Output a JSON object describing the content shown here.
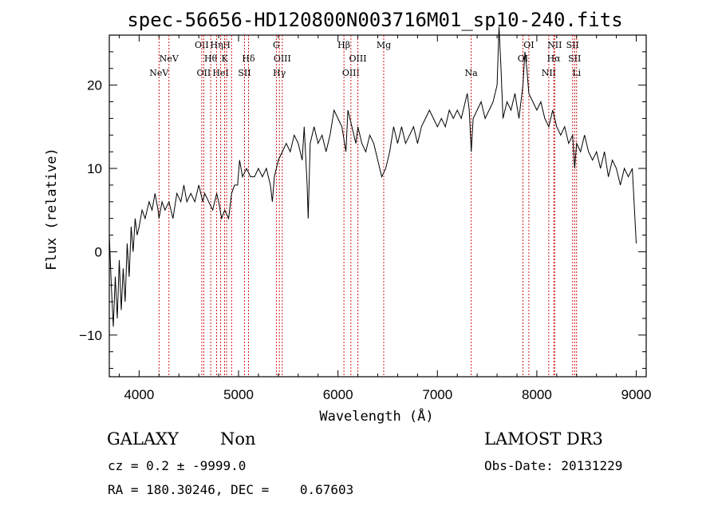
{
  "chart_data": {
    "type": "line",
    "title": "spec-56656-HD120800N003716M01_sp10-240.fits",
    "xlabel": "Wavelength (Å)",
    "ylabel": "Flux (relative)",
    "xlim": [
      3700,
      9100
    ],
    "ylim": [
      -15,
      26
    ],
    "x_ticks": [
      4000,
      5000,
      6000,
      7000,
      8000,
      9000
    ],
    "y_ticks": [
      -10,
      0,
      10,
      20
    ],
    "grid": false,
    "series": [
      {
        "color": "#000000",
        "points": [
          [
            3700,
            2
          ],
          [
            3720,
            -4
          ],
          [
            3740,
            -9
          ],
          [
            3760,
            -3
          ],
          [
            3780,
            -8
          ],
          [
            3800,
            -1
          ],
          [
            3820,
            -7
          ],
          [
            3840,
            -2
          ],
          [
            3860,
            -6
          ],
          [
            3880,
            1
          ],
          [
            3900,
            -3
          ],
          [
            3920,
            3
          ],
          [
            3940,
            0
          ],
          [
            3960,
            4
          ],
          [
            3980,
            2
          ],
          [
            4000,
            3
          ],
          [
            4030,
            5
          ],
          [
            4060,
            4
          ],
          [
            4100,
            6
          ],
          [
            4130,
            5
          ],
          [
            4160,
            7
          ],
          [
            4190,
            5
          ],
          [
            4200,
            4
          ],
          [
            4230,
            6
          ],
          [
            4260,
            5
          ],
          [
            4300,
            6
          ],
          [
            4340,
            4
          ],
          [
            4380,
            7
          ],
          [
            4420,
            6
          ],
          [
            4450,
            8
          ],
          [
            4480,
            6
          ],
          [
            4520,
            7
          ],
          [
            4560,
            6
          ],
          [
            4600,
            8
          ],
          [
            4640,
            6
          ],
          [
            4660,
            7
          ],
          [
            4700,
            6
          ],
          [
            4740,
            5
          ],
          [
            4780,
            7
          ],
          [
            4800,
            6
          ],
          [
            4830,
            4
          ],
          [
            4860,
            5
          ],
          [
            4900,
            4
          ],
          [
            4930,
            7
          ],
          [
            4960,
            8
          ],
          [
            4990,
            8
          ],
          [
            5010,
            11
          ],
          [
            5040,
            9
          ],
          [
            5080,
            10
          ],
          [
            5120,
            9
          ],
          [
            5160,
            9
          ],
          [
            5200,
            10
          ],
          [
            5240,
            9
          ],
          [
            5280,
            10
          ],
          [
            5320,
            8
          ],
          [
            5340,
            6
          ],
          [
            5360,
            9
          ],
          [
            5400,
            11
          ],
          [
            5440,
            12
          ],
          [
            5480,
            13
          ],
          [
            5520,
            12
          ],
          [
            5560,
            14
          ],
          [
            5600,
            13
          ],
          [
            5640,
            11
          ],
          [
            5660,
            15
          ],
          [
            5690,
            8
          ],
          [
            5700,
            4
          ],
          [
            5720,
            13
          ],
          [
            5760,
            15
          ],
          [
            5800,
            13
          ],
          [
            5840,
            14
          ],
          [
            5880,
            12
          ],
          [
            5920,
            14
          ],
          [
            5960,
            17
          ],
          [
            6000,
            16
          ],
          [
            6040,
            15
          ],
          [
            6080,
            12
          ],
          [
            6100,
            17
          ],
          [
            6140,
            15
          ],
          [
            6180,
            13
          ],
          [
            6200,
            15
          ],
          [
            6240,
            13
          ],
          [
            6280,
            12
          ],
          [
            6320,
            14
          ],
          [
            6360,
            13
          ],
          [
            6400,
            11
          ],
          [
            6440,
            9
          ],
          [
            6480,
            10
          ],
          [
            6520,
            12
          ],
          [
            6560,
            15
          ],
          [
            6600,
            13
          ],
          [
            6640,
            15
          ],
          [
            6680,
            13
          ],
          [
            6720,
            14
          ],
          [
            6760,
            15
          ],
          [
            6800,
            13
          ],
          [
            6840,
            15
          ],
          [
            6880,
            16
          ],
          [
            6920,
            17
          ],
          [
            6960,
            16
          ],
          [
            7000,
            15
          ],
          [
            7040,
            16
          ],
          [
            7080,
            15
          ],
          [
            7120,
            17
          ],
          [
            7160,
            16
          ],
          [
            7200,
            17
          ],
          [
            7240,
            16
          ],
          [
            7280,
            18
          ],
          [
            7300,
            19
          ],
          [
            7320,
            17
          ],
          [
            7340,
            12
          ],
          [
            7360,
            16
          ],
          [
            7400,
            17
          ],
          [
            7440,
            18
          ],
          [
            7480,
            16
          ],
          [
            7520,
            17
          ],
          [
            7560,
            18
          ],
          [
            7600,
            20
          ],
          [
            7620,
            27
          ],
          [
            7640,
            22
          ],
          [
            7660,
            16
          ],
          [
            7700,
            18
          ],
          [
            7740,
            17
          ],
          [
            7780,
            19
          ],
          [
            7820,
            16
          ],
          [
            7860,
            20
          ],
          [
            7880,
            24
          ],
          [
            7900,
            22
          ],
          [
            7920,
            19
          ],
          [
            7960,
            18
          ],
          [
            8000,
            17
          ],
          [
            8040,
            18
          ],
          [
            8080,
            16
          ],
          [
            8120,
            15
          ],
          [
            8160,
            17
          ],
          [
            8200,
            15
          ],
          [
            8240,
            14
          ],
          [
            8280,
            15
          ],
          [
            8320,
            13
          ],
          [
            8360,
            14
          ],
          [
            8380,
            10
          ],
          [
            8400,
            13
          ],
          [
            8440,
            12
          ],
          [
            8480,
            14
          ],
          [
            8520,
            12
          ],
          [
            8560,
            11
          ],
          [
            8600,
            12
          ],
          [
            8640,
            10
          ],
          [
            8680,
            12
          ],
          [
            8720,
            9
          ],
          [
            8760,
            11
          ],
          [
            8800,
            10
          ],
          [
            8840,
            8
          ],
          [
            8880,
            10
          ],
          [
            8920,
            9
          ],
          [
            8960,
            10
          ],
          [
            9000,
            1
          ]
        ]
      }
    ],
    "line_markers": {
      "color": "#cc0000",
      "lines": [
        {
          "x": 4200,
          "label": "NeV",
          "row": 2
        },
        {
          "x": 4300,
          "label": "NeV",
          "row": 1
        },
        {
          "x": 4630,
          "label": "OII",
          "row": 0
        },
        {
          "x": 4650,
          "label": "OII",
          "row": 2
        },
        {
          "x": 4720,
          "label": "Hθ",
          "row": 1
        },
        {
          "x": 4780,
          "label": "Hη",
          "row": 0
        },
        {
          "x": 4820,
          "label": "HeI",
          "row": 2
        },
        {
          "x": 4880,
          "label": "H",
          "row": 0
        },
        {
          "x": 4860,
          "label": "K",
          "row": 1
        },
        {
          "x": 4930,
          "label": "",
          "row": 0
        },
        {
          "x": 5060,
          "label": "SII",
          "row": 2
        },
        {
          "x": 5100,
          "label": "Hδ",
          "row": 1
        },
        {
          "x": 5380,
          "label": "G",
          "row": 0
        },
        {
          "x": 5410,
          "label": "Hγ",
          "row": 2
        },
        {
          "x": 5440,
          "label": "OIII",
          "row": 1
        },
        {
          "x": 6060,
          "label": "Hβ",
          "row": 0
        },
        {
          "x": 6130,
          "label": "OIII",
          "row": 2
        },
        {
          "x": 6200,
          "label": "OIII",
          "row": 1
        },
        {
          "x": 6460,
          "label": "Mg",
          "row": 0
        },
        {
          "x": 7340,
          "label": "Na",
          "row": 2
        },
        {
          "x": 7860,
          "label": "OI",
          "row": 1
        },
        {
          "x": 7920,
          "label": "OI",
          "row": 0
        },
        {
          "x": 8120,
          "label": "NII",
          "row": 2
        },
        {
          "x": 8170,
          "label": "Hα",
          "row": 1
        },
        {
          "x": 8180,
          "label": "NII",
          "row": 0
        },
        {
          "x": 8360,
          "label": "SII",
          "row": 0
        },
        {
          "x": 8380,
          "label": "SII",
          "row": 1
        },
        {
          "x": 8400,
          "label": "Li",
          "row": 2
        }
      ]
    }
  },
  "info": {
    "class_label": "GALAXY",
    "subclass_label": "Non",
    "survey": "LAMOST DR3",
    "cz_text": "cz = 0.2 ± -9999.0",
    "obs_date": "Obs-Date: 20131229",
    "radec_text": "RA = 180.30246, DEC =    0.67603"
  }
}
